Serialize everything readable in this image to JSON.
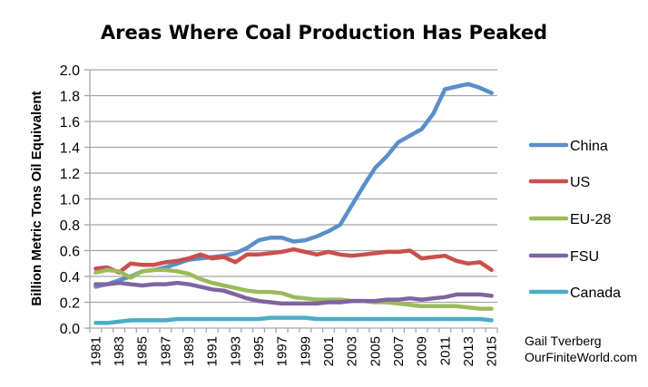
{
  "chart_data": {
    "type": "line",
    "title": "Areas Where Coal Production Has Peaked",
    "xlabel": "",
    "ylabel": "Billion Metric Tons Oil Equivalent",
    "ylim": [
      0,
      2.0
    ],
    "yticks": [
      "0.0",
      "0.2",
      "0.4",
      "0.6",
      "0.8",
      "1.0",
      "1.2",
      "1.4",
      "1.6",
      "1.8",
      "2.0"
    ],
    "x": [
      1981,
      1982,
      1983,
      1984,
      1985,
      1986,
      1987,
      1988,
      1989,
      1990,
      1991,
      1992,
      1993,
      1994,
      1995,
      1996,
      1997,
      1998,
      1999,
      2000,
      2001,
      2002,
      2003,
      2004,
      2005,
      2006,
      2007,
      2008,
      2009,
      2010,
      2011,
      2012,
      2013,
      2014,
      2015
    ],
    "xtick_labels": [
      "1981",
      "1983",
      "1985",
      "1987",
      "1989",
      "1991",
      "1993",
      "1995",
      "1997",
      "1999",
      "2001",
      "2003",
      "2005",
      "2007",
      "2009",
      "2011",
      "2013",
      "2015"
    ],
    "grid": "horizontal",
    "legend_position": "right",
    "series": [
      {
        "name": "China",
        "color": "#5B8FC9",
        "values": [
          0.32,
          0.34,
          0.37,
          0.4,
          0.44,
          0.45,
          0.47,
          0.5,
          0.53,
          0.54,
          0.55,
          0.56,
          0.58,
          0.62,
          0.68,
          0.7,
          0.7,
          0.67,
          0.68,
          0.71,
          0.75,
          0.8,
          0.95,
          1.1,
          1.24,
          1.33,
          1.44,
          1.49,
          1.54,
          1.66,
          1.85,
          1.87,
          1.89,
          1.86,
          1.82
        ]
      },
      {
        "name": "US",
        "color": "#C9504D",
        "values": [
          0.46,
          0.47,
          0.43,
          0.5,
          0.49,
          0.49,
          0.51,
          0.52,
          0.54,
          0.57,
          0.54,
          0.55,
          0.51,
          0.57,
          0.57,
          0.58,
          0.59,
          0.61,
          0.59,
          0.57,
          0.59,
          0.57,
          0.56,
          0.57,
          0.58,
          0.59,
          0.59,
          0.6,
          0.54,
          0.55,
          0.56,
          0.52,
          0.5,
          0.51,
          0.45
        ]
      },
      {
        "name": "EU-28",
        "color": "#9BBB59",
        "values": [
          0.43,
          0.45,
          0.44,
          0.39,
          0.44,
          0.45,
          0.45,
          0.44,
          0.42,
          0.38,
          0.35,
          0.33,
          0.31,
          0.29,
          0.28,
          0.28,
          0.27,
          0.24,
          0.23,
          0.22,
          0.22,
          0.22,
          0.21,
          0.21,
          0.2,
          0.2,
          0.19,
          0.18,
          0.17,
          0.17,
          0.17,
          0.17,
          0.16,
          0.15,
          0.15
        ]
      },
      {
        "name": "FSU",
        "color": "#8064A2",
        "values": [
          0.34,
          0.34,
          0.35,
          0.34,
          0.33,
          0.34,
          0.34,
          0.35,
          0.34,
          0.32,
          0.3,
          0.29,
          0.26,
          0.23,
          0.21,
          0.2,
          0.19,
          0.19,
          0.19,
          0.19,
          0.2,
          0.2,
          0.21,
          0.21,
          0.21,
          0.22,
          0.22,
          0.23,
          0.22,
          0.23,
          0.24,
          0.26,
          0.26,
          0.26,
          0.25
        ]
      },
      {
        "name": "Canada",
        "color": "#4BACC6",
        "values": [
          0.04,
          0.04,
          0.05,
          0.06,
          0.06,
          0.06,
          0.06,
          0.07,
          0.07,
          0.07,
          0.07,
          0.07,
          0.07,
          0.07,
          0.07,
          0.08,
          0.08,
          0.08,
          0.08,
          0.07,
          0.07,
          0.07,
          0.07,
          0.07,
          0.07,
          0.07,
          0.07,
          0.07,
          0.07,
          0.07,
          0.07,
          0.07,
          0.07,
          0.07,
          0.06
        ]
      }
    ],
    "annotations": [
      "Gail Tverberg",
      "OurFiniteWorld.com"
    ]
  }
}
